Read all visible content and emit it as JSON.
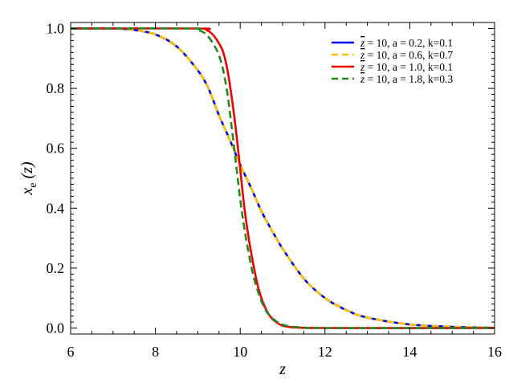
{
  "chart_data": {
    "type": "line",
    "xlabel": "z",
    "ylabel": "x",
    "ylabel_subscript": "e",
    "ylabel_suffix": " (z)",
    "xlim": [
      6,
      16
    ],
    "ylim": [
      -0.02,
      1.02
    ],
    "xticks": [
      6,
      8,
      10,
      12,
      14,
      16
    ],
    "xtick_labels": [
      "6",
      "8",
      "10",
      "12",
      "14",
      "16"
    ],
    "yticks": [
      0.0,
      0.2,
      0.4,
      0.6,
      0.8,
      1.0
    ],
    "ytick_labels": [
      "0.0",
      "0.2",
      "0.4",
      "0.6",
      "0.8",
      "1.0"
    ],
    "legend_position": "top-right",
    "grid": false,
    "series": [
      {
        "name": "z̄ = 10, a = 0.2, k=0.1",
        "legend_rest": " = 10, a = 0.2, k=0.1",
        "color": "#0000ee",
        "dash": "solid",
        "x": [
          6,
          7,
          7.5,
          8,
          8.5,
          9,
          9.25,
          9.5,
          9.75,
          10,
          10.25,
          10.5,
          10.75,
          11,
          11.5,
          12,
          12.5,
          13,
          14,
          15,
          16
        ],
        "y": [
          1.0,
          1.0,
          0.995,
          0.98,
          0.94,
          0.86,
          0.8,
          0.71,
          0.63,
          0.545,
          0.47,
          0.39,
          0.325,
          0.265,
          0.165,
          0.1,
          0.06,
          0.035,
          0.012,
          0.004,
          0.001
        ]
      },
      {
        "name": "z̄ = 10, a = 0.6, k=0.7",
        "legend_rest": " = 10, a = 0.6, k=0.7",
        "color": "#ffc000",
        "dash": "dashed",
        "x": [
          6,
          7,
          7.5,
          8,
          8.5,
          9,
          9.25,
          9.5,
          9.75,
          10,
          10.25,
          10.5,
          10.75,
          11,
          11.5,
          12,
          12.5,
          13,
          14,
          15,
          16
        ],
        "y": [
          1.0,
          1.0,
          0.995,
          0.98,
          0.94,
          0.86,
          0.8,
          0.71,
          0.63,
          0.545,
          0.47,
          0.39,
          0.325,
          0.265,
          0.165,
          0.1,
          0.06,
          0.035,
          0.012,
          0.004,
          0.001
        ]
      },
      {
        "name": "z̄ = 10, a = 1.0, k=0.1",
        "legend_rest": " = 10, a = 1.0, k=0.1",
        "color": "#ee0000",
        "dash": "solid",
        "x": [
          6,
          9,
          9.2,
          9.35,
          9.5,
          9.6,
          9.7,
          9.8,
          9.9,
          10,
          10.1,
          10.2,
          10.3,
          10.4,
          10.5,
          10.6,
          10.7,
          10.8,
          10.9,
          11,
          11.2,
          11.5,
          12,
          16
        ],
        "y": [
          1.0,
          1.0,
          0.995,
          0.98,
          0.95,
          0.92,
          0.86,
          0.77,
          0.66,
          0.53,
          0.4,
          0.3,
          0.22,
          0.15,
          0.1,
          0.065,
          0.04,
          0.025,
          0.015,
          0.008,
          0.003,
          0.001,
          0.0,
          0.0
        ]
      },
      {
        "name": "z̄ = 10, a = 1.8, k=0.3",
        "legend_rest": " = 10, a = 1.8, k=0.3",
        "color": "#1f8a1f",
        "dash": "dashed",
        "x": [
          6,
          8.8,
          9.0,
          9.2,
          9.4,
          9.5,
          9.6,
          9.7,
          9.8,
          9.9,
          10,
          10.1,
          10.2,
          10.3,
          10.4,
          10.5,
          10.6,
          10.7,
          10.8,
          10.9,
          11,
          11.2,
          11.5,
          12,
          16
        ],
        "y": [
          1.0,
          1.0,
          0.995,
          0.98,
          0.94,
          0.91,
          0.86,
          0.78,
          0.67,
          0.55,
          0.43,
          0.33,
          0.25,
          0.18,
          0.13,
          0.09,
          0.06,
          0.04,
          0.028,
          0.018,
          0.011,
          0.005,
          0.002,
          0.0,
          0.0
        ]
      }
    ]
  }
}
